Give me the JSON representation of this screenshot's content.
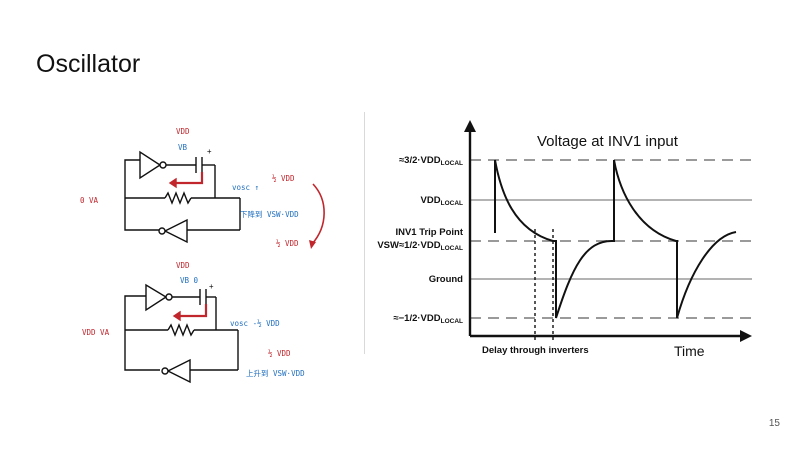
{
  "slide": {
    "title": "Oscillator",
    "page_number": "15"
  },
  "sketch_top": {
    "vdd_label": "VDD",
    "vb_label": "VB",
    "plus_sign": "+",
    "va_label": "0  VA",
    "vosc_label": "vosc ↑",
    "half_vdd_up": "½ VDD",
    "descend_note": "下降到 VSW·VDD",
    "half_vdd_down": "½ VDD"
  },
  "sketch_bottom": {
    "vdd_label": "VDD",
    "vb_label": "VB  0",
    "plus_sign": "+",
    "va_label": "VDD  VA",
    "vosc_label": "vosc -½ VDD",
    "half_vdd_down": "½ VDD",
    "rise_note": "上升到 VSW·VDD"
  },
  "plot": {
    "title": "Voltage at INV1 input",
    "y_levels": [
      "≈3/2·VDD",
      "VDD",
      "INV1 Trip Point",
      "VSW≈1/2·VDD",
      "Ground",
      "≈−1/2·VDD"
    ],
    "subscript": "LOCAL",
    "x_axis_label": "Time",
    "delay_label": "Delay through inverters"
  }
}
